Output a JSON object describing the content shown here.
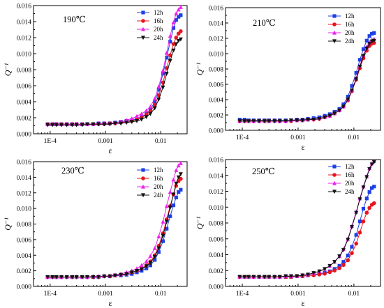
{
  "figure": {
    "background": "#ffffff"
  },
  "chart_data": [
    {
      "type": "line",
      "title": "190℃",
      "xlabel": "ε",
      "ylabel": "Q⁻¹",
      "xscale": "log",
      "xlim": [
        5e-05,
        0.03
      ],
      "ylim": [
        0,
        0.016
      ],
      "xticks": [
        0.0001,
        0.001,
        0.01
      ],
      "xtick_labels": [
        "1E-4",
        "0.001",
        "0.01"
      ],
      "yticks": [
        0,
        0.002,
        0.004,
        0.006,
        0.008,
        0.01,
        0.012,
        0.014,
        0.016
      ],
      "ytick_labels": [
        "0.000",
        "0.002",
        "0.004",
        "0.006",
        "0.008",
        "0.010",
        "0.012",
        "0.014",
        "0.016"
      ],
      "grid": false,
      "legend_position": "top-right",
      "x": [
        9e-05,
        0.00011,
        0.00013,
        0.00016,
        0.0002,
        0.00025,
        0.0003,
        0.00038,
        0.00047,
        0.0006,
        0.00075,
        0.00095,
        0.0012,
        0.0015,
        0.0019,
        0.0024,
        0.003,
        0.0037,
        0.0045,
        0.0055,
        0.0065,
        0.0078,
        0.0092,
        0.011,
        0.0128,
        0.0148,
        0.017,
        0.019,
        0.021,
        0.023
      ],
      "series": [
        {
          "name": "12h",
          "color": "#1f3fe6",
          "marker": "square",
          "values": [
            0.0012,
            0.0012,
            0.0012,
            0.0012,
            0.0012,
            0.0012,
            0.0012,
            0.0012,
            0.0012,
            0.0012,
            0.0013,
            0.0013,
            0.0013,
            0.0014,
            0.0015,
            0.0016,
            0.0017,
            0.0019,
            0.0021,
            0.0025,
            0.003,
            0.004,
            0.0055,
            0.0075,
            0.0095,
            0.0115,
            0.0132,
            0.0142,
            0.0146,
            0.0148
          ]
        },
        {
          "name": "16h",
          "color": "#e8141e",
          "marker": "circle",
          "values": [
            0.0012,
            0.0012,
            0.0012,
            0.0012,
            0.0012,
            0.0012,
            0.0012,
            0.0012,
            0.0012,
            0.0012,
            0.0012,
            0.0012,
            0.0013,
            0.0013,
            0.0014,
            0.0015,
            0.0016,
            0.0018,
            0.002,
            0.0024,
            0.0028,
            0.0036,
            0.0048,
            0.0064,
            0.0082,
            0.0098,
            0.0112,
            0.012,
            0.0125,
            0.0128
          ]
        },
        {
          "name": "20h",
          "color": "#ee22ee",
          "marker": "triangle",
          "values": [
            0.0012,
            0.0012,
            0.0012,
            0.0012,
            0.0012,
            0.0012,
            0.0012,
            0.0012,
            0.0012,
            0.0012,
            0.0013,
            0.0013,
            0.0013,
            0.0014,
            0.0015,
            0.0017,
            0.0019,
            0.0022,
            0.0025,
            0.0029,
            0.0034,
            0.0044,
            0.0059,
            0.0079,
            0.0101,
            0.0122,
            0.0139,
            0.015,
            0.0155,
            0.0158
          ]
        },
        {
          "name": "24h",
          "color": "#111111",
          "marker": "triangle-down",
          "values": [
            0.0011,
            0.0011,
            0.0011,
            0.0011,
            0.0011,
            0.0011,
            0.0011,
            0.0011,
            0.0012,
            0.0012,
            0.0012,
            0.0012,
            0.0012,
            0.0013,
            0.0013,
            0.0014,
            0.0015,
            0.0016,
            0.0018,
            0.0021,
            0.0025,
            0.0032,
            0.0043,
            0.0058,
            0.0075,
            0.0091,
            0.0104,
            0.0112,
            0.0116,
            0.0118
          ]
        }
      ]
    },
    {
      "type": "line",
      "title": "210℃",
      "xlabel": "ε",
      "ylabel": "Q⁻¹",
      "xscale": "log",
      "xlim": [
        5e-05,
        0.03
      ],
      "ylim": [
        0,
        0.016
      ],
      "xticks": [
        0.0001,
        0.001,
        0.01
      ],
      "xtick_labels": [
        "1E-4",
        "0.001",
        "0.01"
      ],
      "yticks": [
        0,
        0.002,
        0.004,
        0.006,
        0.008,
        0.01,
        0.012,
        0.014,
        0.016
      ],
      "ytick_labels": [
        "0.000",
        "0.002",
        "0.004",
        "0.006",
        "0.008",
        "0.010",
        "0.012",
        "0.014",
        "0.016"
      ],
      "grid": false,
      "legend_position": "top-right",
      "x": [
        9e-05,
        0.00011,
        0.00013,
        0.00016,
        0.0002,
        0.00025,
        0.0003,
        0.00038,
        0.00047,
        0.0006,
        0.00075,
        0.00095,
        0.0012,
        0.0015,
        0.0019,
        0.0024,
        0.003,
        0.0037,
        0.0045,
        0.0055,
        0.0065,
        0.0078,
        0.0092,
        0.011,
        0.0128,
        0.0148,
        0.017,
        0.019,
        0.021,
        0.023
      ],
      "series": [
        {
          "name": "12h",
          "color": "#1f3fe6",
          "marker": "square",
          "values": [
            0.0014,
            0.0014,
            0.0013,
            0.0013,
            0.0013,
            0.0013,
            0.0013,
            0.0013,
            0.0013,
            0.0013,
            0.0013,
            0.0014,
            0.0014,
            0.0015,
            0.0016,
            0.0017,
            0.0019,
            0.0021,
            0.0024,
            0.0028,
            0.0034,
            0.0044,
            0.0058,
            0.0075,
            0.0092,
            0.0106,
            0.0117,
            0.0123,
            0.0126,
            0.0127
          ]
        },
        {
          "name": "16h",
          "color": "#e8141e",
          "marker": "circle",
          "values": [
            0.0012,
            0.0012,
            0.0012,
            0.0012,
            0.0012,
            0.0012,
            0.0012,
            0.0012,
            0.0012,
            0.0012,
            0.0012,
            0.0013,
            0.0013,
            0.0014,
            0.0014,
            0.0015,
            0.0017,
            0.0019,
            0.0022,
            0.0026,
            0.0031,
            0.0039,
            0.0051,
            0.0066,
            0.0081,
            0.0094,
            0.0104,
            0.011,
            0.0113,
            0.0114
          ]
        },
        {
          "name": "20h",
          "color": "#ee22ee",
          "marker": "triangle",
          "values": [
            0.0012,
            0.0012,
            0.0012,
            0.0012,
            0.0012,
            0.0012,
            0.0012,
            0.0012,
            0.0012,
            0.0012,
            0.0013,
            0.0013,
            0.0013,
            0.0014,
            0.0015,
            0.0016,
            0.0017,
            0.0019,
            0.0022,
            0.0026,
            0.0031,
            0.004,
            0.0052,
            0.0068,
            0.0084,
            0.0098,
            0.0109,
            0.0115,
            0.0118,
            0.0119
          ]
        },
        {
          "name": "24h",
          "color": "#111111",
          "marker": "triangle-down",
          "values": [
            0.0012,
            0.0012,
            0.0012,
            0.0012,
            0.0012,
            0.0012,
            0.0012,
            0.0012,
            0.0012,
            0.0012,
            0.0013,
            0.0013,
            0.0013,
            0.0014,
            0.0014,
            0.0015,
            0.0017,
            0.0019,
            0.0022,
            0.0026,
            0.0031,
            0.004,
            0.0052,
            0.0067,
            0.0083,
            0.0097,
            0.0107,
            0.0113,
            0.0116,
            0.0117
          ]
        }
      ]
    },
    {
      "type": "line",
      "title": "230℃",
      "xlabel": "ε",
      "ylabel": "Q⁻¹",
      "xscale": "log",
      "xlim": [
        5e-05,
        0.03
      ],
      "ylim": [
        0,
        0.016
      ],
      "xticks": [
        0.0001,
        0.001,
        0.01
      ],
      "xtick_labels": [
        "1E-4",
        "0.001",
        "0.01"
      ],
      "yticks": [
        0,
        0.002,
        0.004,
        0.006,
        0.008,
        0.01,
        0.012,
        0.014,
        0.016
      ],
      "ytick_labels": [
        "0.000",
        "0.002",
        "0.004",
        "0.006",
        "0.008",
        "0.010",
        "0.012",
        "0.014",
        "0.016"
      ],
      "grid": false,
      "legend_position": "top-right",
      "x": [
        9e-05,
        0.00011,
        0.00013,
        0.00016,
        0.0002,
        0.00025,
        0.0003,
        0.00038,
        0.00047,
        0.0006,
        0.00075,
        0.00095,
        0.0012,
        0.0015,
        0.0019,
        0.0024,
        0.003,
        0.0037,
        0.0045,
        0.0055,
        0.0065,
        0.0078,
        0.0092,
        0.011,
        0.0128,
        0.0148,
        0.017,
        0.019,
        0.021,
        0.023
      ],
      "series": [
        {
          "name": "12h",
          "color": "#1f3fe6",
          "marker": "square",
          "values": [
            0.0012,
            0.0012,
            0.0012,
            0.0012,
            0.0012,
            0.0012,
            0.0012,
            0.0012,
            0.0012,
            0.0012,
            0.0012,
            0.0013,
            0.0013,
            0.0014,
            0.0014,
            0.0015,
            0.0016,
            0.0018,
            0.002,
            0.0023,
            0.0027,
            0.0034,
            0.0044,
            0.0058,
            0.0074,
            0.009,
            0.0104,
            0.0114,
            0.0121,
            0.0124
          ]
        },
        {
          "name": "16h",
          "color": "#e8141e",
          "marker": "circle",
          "values": [
            0.0012,
            0.0012,
            0.0012,
            0.0012,
            0.0012,
            0.0012,
            0.0012,
            0.0012,
            0.0012,
            0.0012,
            0.0012,
            0.0013,
            0.0013,
            0.0014,
            0.0015,
            0.0016,
            0.0018,
            0.002,
            0.0023,
            0.0027,
            0.0032,
            0.004,
            0.0052,
            0.0068,
            0.0086,
            0.0103,
            0.0118,
            0.0129,
            0.0135,
            0.0138
          ]
        },
        {
          "name": "20h",
          "color": "#ee22ee",
          "marker": "triangle",
          "values": [
            0.0012,
            0.0012,
            0.0012,
            0.0012,
            0.0012,
            0.0012,
            0.0012,
            0.0012,
            0.0012,
            0.0013,
            0.0013,
            0.0013,
            0.0014,
            0.0015,
            0.0016,
            0.0018,
            0.002,
            0.0023,
            0.0027,
            0.0032,
            0.0039,
            0.0049,
            0.0064,
            0.0083,
            0.0103,
            0.0121,
            0.0137,
            0.0149,
            0.0155,
            0.0158
          ]
        },
        {
          "name": "24h",
          "color": "#111111",
          "marker": "triangle-down",
          "values": [
            0.0012,
            0.0012,
            0.0012,
            0.0012,
            0.0012,
            0.0012,
            0.0012,
            0.0012,
            0.0012,
            0.0012,
            0.0012,
            0.0013,
            0.0013,
            0.0014,
            0.0015,
            0.0016,
            0.0018,
            0.002,
            0.0022,
            0.0026,
            0.003,
            0.0038,
            0.0049,
            0.0065,
            0.0083,
            0.0101,
            0.0118,
            0.0132,
            0.014,
            0.0144
          ]
        }
      ]
    },
    {
      "type": "line",
      "title": "250℃",
      "xlabel": "ε",
      "ylabel": "Q⁻¹",
      "xscale": "log",
      "xlim": [
        5e-05,
        0.03
      ],
      "ylim": [
        0,
        0.016
      ],
      "xticks": [
        0.0001,
        0.001,
        0.01
      ],
      "xtick_labels": [
        "1E-4",
        "0.001",
        "0.01"
      ],
      "yticks": [
        0,
        0.002,
        0.004,
        0.006,
        0.008,
        0.01,
        0.012,
        0.014,
        0.016
      ],
      "ytick_labels": [
        "0.000",
        "0.002",
        "0.004",
        "0.006",
        "0.008",
        "0.010",
        "0.012",
        "0.014",
        "0.016"
      ],
      "grid": false,
      "legend_position": "top-right",
      "x": [
        9e-05,
        0.00011,
        0.00013,
        0.00016,
        0.0002,
        0.00025,
        0.0003,
        0.00038,
        0.00047,
        0.0006,
        0.00075,
        0.00095,
        0.0012,
        0.0015,
        0.0019,
        0.0024,
        0.003,
        0.0037,
        0.0045,
        0.0055,
        0.0065,
        0.0078,
        0.0092,
        0.011,
        0.0128,
        0.0148,
        0.017,
        0.019,
        0.021,
        0.023
      ],
      "series": [
        {
          "name": "12h",
          "color": "#1f3fe6",
          "marker": "square",
          "values": [
            0.0012,
            0.0012,
            0.0012,
            0.0012,
            0.0012,
            0.0012,
            0.0012,
            0.0012,
            0.0012,
            0.0012,
            0.0012,
            0.0013,
            0.0013,
            0.0014,
            0.0015,
            0.0016,
            0.0017,
            0.0019,
            0.0022,
            0.0026,
            0.0031,
            0.0039,
            0.005,
            0.0065,
            0.0082,
            0.0098,
            0.0111,
            0.0119,
            0.0124,
            0.0126
          ]
        },
        {
          "name": "16h",
          "color": "#e8141e",
          "marker": "circle",
          "values": [
            0.0012,
            0.0012,
            0.0012,
            0.0012,
            0.0012,
            0.0012,
            0.0012,
            0.0012,
            0.0012,
            0.0012,
            0.0012,
            0.0013,
            0.0013,
            0.0014,
            0.0014,
            0.0015,
            0.0016,
            0.0018,
            0.002,
            0.0023,
            0.0027,
            0.0033,
            0.0042,
            0.0054,
            0.0068,
            0.0082,
            0.0093,
            0.0099,
            0.0103,
            0.0105
          ]
        },
        {
          "name": "20h",
          "color": "#ee22ee",
          "marker": "triangle",
          "values": [
            0.0012,
            0.0012,
            0.0012,
            0.0012,
            0.0012,
            0.0012,
            0.0012,
            0.0012,
            0.0012,
            0.0013,
            0.0013,
            0.0013,
            0.0014,
            0.0015,
            0.0017,
            0.0019,
            0.0022,
            0.0026,
            0.0031,
            0.0038,
            0.0047,
            0.006,
            0.0076,
            0.0094,
            0.0111,
            0.0126,
            0.0139,
            0.0149,
            0.0155,
            0.0158
          ]
        },
        {
          "name": "24h",
          "color": "#111111",
          "marker": "triangle-down",
          "values": [
            0.0012,
            0.0012,
            0.0012,
            0.0012,
            0.0012,
            0.0012,
            0.0012,
            0.0012,
            0.0012,
            0.0013,
            0.0013,
            0.0013,
            0.0014,
            0.0015,
            0.0017,
            0.0019,
            0.0022,
            0.0026,
            0.0031,
            0.0038,
            0.0046,
            0.0059,
            0.0075,
            0.0093,
            0.011,
            0.0125,
            0.0138,
            0.0148,
            0.0154,
            0.0157
          ]
        }
      ]
    }
  ]
}
